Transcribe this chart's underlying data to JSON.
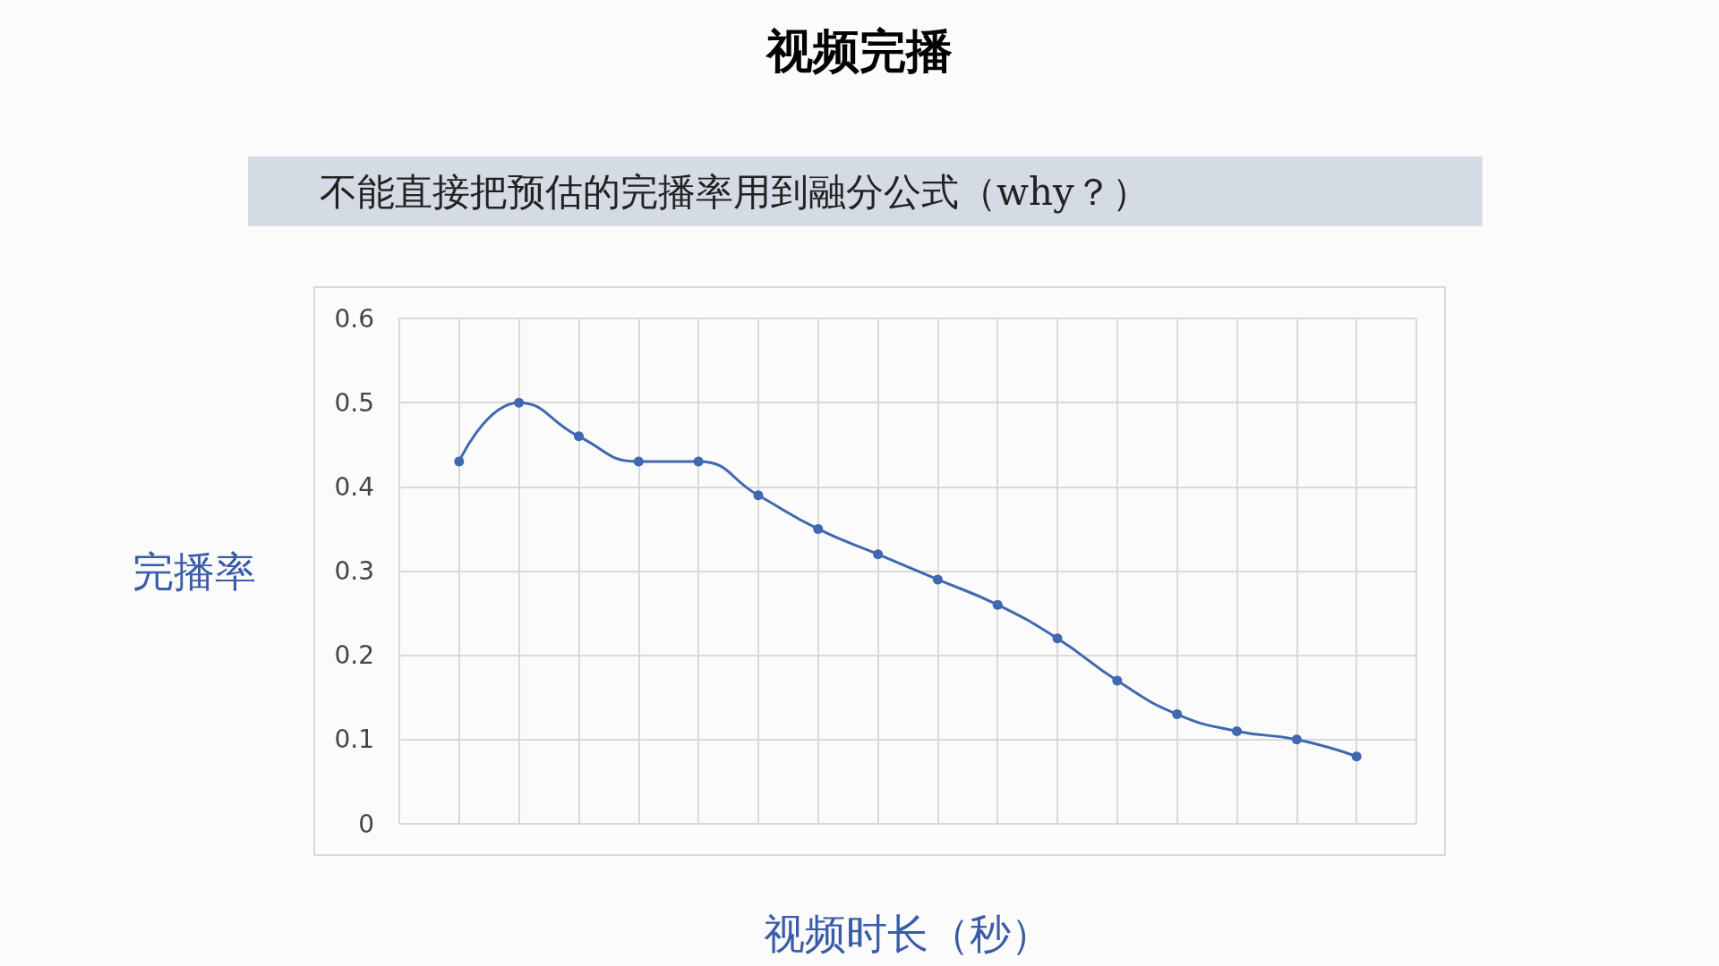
{
  "chart_data": {
    "type": "line",
    "title": "视频完播",
    "subtitle": "不能直接把预估的完播率用到融分公式（why？）",
    "xlabel": "视频时长（秒）",
    "ylabel": "完播率",
    "categories": [
      null,
      null,
      null,
      null,
      null,
      null,
      null,
      null,
      null,
      null,
      null,
      null,
      null,
      null,
      null,
      null,
      null,
      null
    ],
    "series": [
      {
        "color": "#4068b0",
        "values": [
          null,
          0.43,
          0.5,
          0.46,
          0.43,
          0.43,
          0.39,
          0.35,
          0.32,
          0.29,
          0.26,
          0.22,
          0.17,
          0.13,
          0.11,
          0.1,
          0.08,
          null
        ]
      }
    ],
    "ylim": [
      0,
      0.6
    ],
    "yticks": [
      0,
      0.1,
      0.2,
      0.3,
      0.4,
      0.5,
      0.6
    ],
    "grid": true,
    "tick_labels": "y",
    "marker": "circle",
    "line_style": "solid"
  }
}
